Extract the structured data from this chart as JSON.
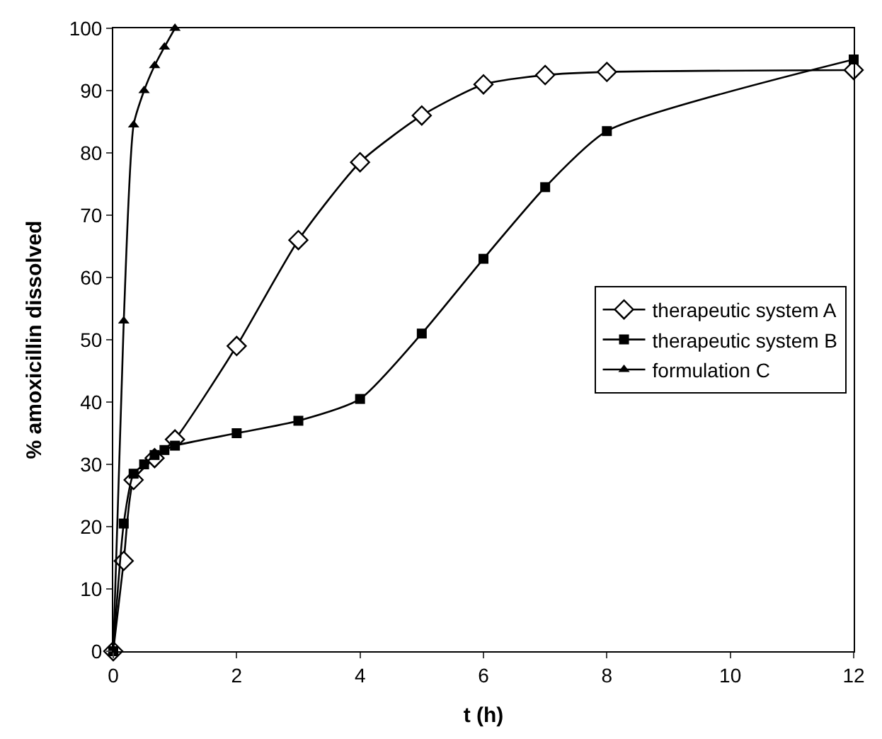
{
  "chart_data": {
    "type": "line",
    "xlabel": "t (h)",
    "ylabel": "% amoxicillin dissolved",
    "xlim": [
      0,
      12
    ],
    "xticks": [
      0,
      2,
      4,
      6,
      8,
      10,
      12
    ],
    "ylim": [
      0,
      100
    ],
    "yticks": [
      0,
      10,
      20,
      30,
      40,
      50,
      60,
      70,
      80,
      90,
      100
    ],
    "legend": "right",
    "line_style": "solid",
    "series": [
      {
        "name": "therapeutic system A",
        "color": "#000000",
        "marker": "diamond",
        "x": [
          0,
          0.17,
          0.33,
          0.67,
          1,
          2,
          3,
          4,
          5,
          6,
          7,
          8,
          12
        ],
        "values": [
          0,
          14.5,
          27.5,
          31,
          34,
          49,
          66,
          78.5,
          86,
          91,
          92.5,
          93,
          93.3
        ]
      },
      {
        "name": "therapeutic system B",
        "color": "#000000",
        "marker": "square",
        "x": [
          0,
          0.17,
          0.33,
          0.5,
          0.67,
          0.83,
          1,
          2,
          3,
          4,
          5,
          6,
          7,
          8,
          12
        ],
        "values": [
          0,
          20.5,
          28.5,
          30,
          31.5,
          32.3,
          33,
          35,
          37,
          40.5,
          51,
          63,
          74.5,
          83.5,
          95
        ]
      },
      {
        "name": "formulation C",
        "color": "#000000",
        "marker": "triangle",
        "x": [
          0,
          0.17,
          0.33,
          0.5,
          0.67,
          0.83,
          1
        ],
        "values": [
          0,
          53,
          84.5,
          90,
          94,
          97,
          100
        ]
      }
    ]
  }
}
